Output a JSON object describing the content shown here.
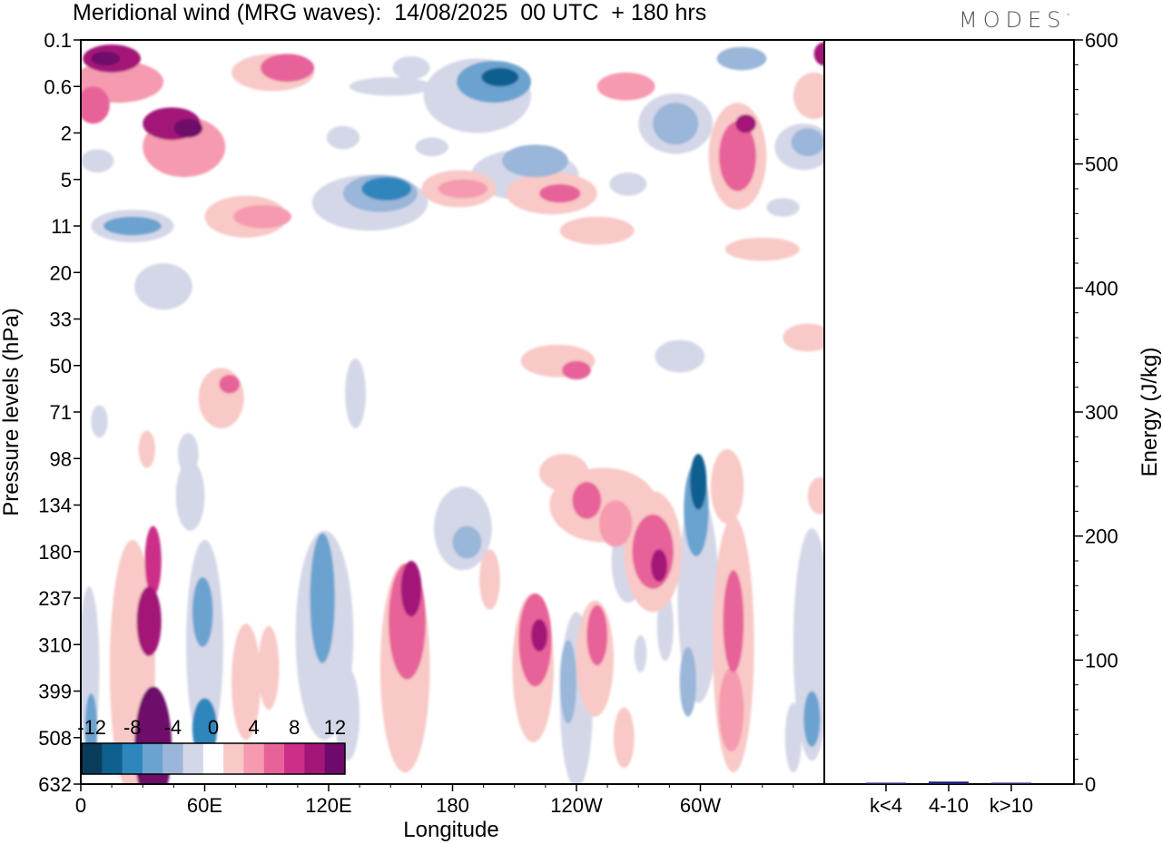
{
  "title": "Meridional wind (MRG waves):  14/08/2025  00 UTC  + 180 hrs",
  "logo": "MODES",
  "logo_mark": "°",
  "colors": {
    "neg": [
      "#0a3d5c",
      "#0f5f8f",
      "#2f86bd",
      "#6aa3cf",
      "#9ab6d8",
      "#d4d7e8"
    ],
    "pos": [
      "#f8c9c6",
      "#f59aaf",
      "#e8629a",
      "#cc2f88",
      "#a31678",
      "#6e0a6b"
    ]
  },
  "chart_data": [
    {
      "type": "heatmap",
      "title": "Meridional wind (MRG waves):  14/08/2025  00 UTC  + 180 hrs",
      "xlabel": "Longitude",
      "ylabel": "Pressure levels (hPa)",
      "x_ticks": [
        "0",
        "60E",
        "120E",
        "180",
        "120W",
        "60W"
      ],
      "y_ticks": [
        "0.1",
        "0.6",
        "2",
        "5",
        "11",
        "20",
        "33",
        "50",
        "71",
        "98",
        "134",
        "180",
        "237",
        "310",
        "399",
        "508",
        "632"
      ],
      "colorbar_labels": [
        "-12",
        "-8",
        "-4",
        "0",
        "4",
        "8",
        "12"
      ],
      "colorbar_levels": [
        -14,
        -12,
        -10,
        -8,
        -6,
        -4,
        -2,
        2,
        4,
        6,
        8,
        10,
        12,
        14
      ],
      "blobs": [
        {
          "lon": 35,
          "lev": 15.2,
          "w": 9,
          "h": 2.6,
          "v": 13
        },
        {
          "lon": 33,
          "lev": 12.5,
          "w": 6,
          "h": 1.5,
          "v": 11
        },
        {
          "lon": 35,
          "lev": 11.2,
          "w": 4,
          "h": 1.5,
          "v": 9
        },
        {
          "lon": 25,
          "lev": 13.5,
          "w": 11,
          "h": 5.5,
          "v": 3
        },
        {
          "lon": 32,
          "lev": 8.8,
          "w": 4,
          "h": 0.8,
          "v": 3
        },
        {
          "lon": 5,
          "lev": 14.8,
          "w": 3,
          "h": 1.5,
          "v": -6
        },
        {
          "lon": 4,
          "lev": 13.5,
          "w": 5,
          "h": 3.5,
          "v": -3
        },
        {
          "lon": 60,
          "lev": 14.8,
          "w": 6,
          "h": 1.3,
          "v": -9
        },
        {
          "lon": 59,
          "lev": 12.3,
          "w": 5,
          "h": 1.5,
          "v": -7
        },
        {
          "lon": 60,
          "lev": 13,
          "w": 9,
          "h": 4.5,
          "v": -3
        },
        {
          "lon": 53,
          "lev": 9.8,
          "w": 7,
          "h": 1.5,
          "v": -2.5
        },
        {
          "lon": 80,
          "lev": 13.8,
          "w": 7,
          "h": 2.5,
          "v": 2.5
        },
        {
          "lon": 91,
          "lev": 13.5,
          "w": 5,
          "h": 1.8,
          "v": 2.5
        },
        {
          "lon": 117,
          "lev": 12,
          "w": 6,
          "h": 2.8,
          "v": -6
        },
        {
          "lon": 118,
          "lev": 12.8,
          "w": 14,
          "h": 4.5,
          "v": -3
        },
        {
          "lon": 129,
          "lev": 14.5,
          "w": 6,
          "h": 2,
          "v": -2.5
        },
        {
          "lon": 160,
          "lev": 11.8,
          "w": 5,
          "h": 1.2,
          "v": 10
        },
        {
          "lon": 158,
          "lev": 12.5,
          "w": 9,
          "h": 2.5,
          "v": 7
        },
        {
          "lon": 157,
          "lev": 13.5,
          "w": 12,
          "h": 4.5,
          "v": 3
        },
        {
          "lon": 187,
          "lev": 10.8,
          "w": 7,
          "h": 0.7,
          "v": -5
        },
        {
          "lon": 185,
          "lev": 10.5,
          "w": 14,
          "h": 1.8,
          "v": -2.5
        },
        {
          "lon": 198,
          "lev": 11.6,
          "w": 5,
          "h": 1.3,
          "v": 3
        },
        {
          "lon": 222,
          "lev": 12.8,
          "w": 4,
          "h": 0.7,
          "v": 11
        },
        {
          "lon": 220,
          "lev": 12.9,
          "w": 8,
          "h": 2,
          "v": 7
        },
        {
          "lon": 219,
          "lev": 13.5,
          "w": 10,
          "h": 3.2,
          "v": 3
        },
        {
          "lon": 236,
          "lev": 13.8,
          "w": 4,
          "h": 1.8,
          "v": -5
        },
        {
          "lon": 240,
          "lev": 14.2,
          "w": 8,
          "h": 3.8,
          "v": -2.5
        },
        {
          "lon": 250,
          "lev": 12.8,
          "w": 5,
          "h": 1.3,
          "v": 6
        },
        {
          "lon": 249,
          "lev": 13.3,
          "w": 9,
          "h": 2.5,
          "v": 3
        },
        {
          "lon": 263,
          "lev": 15,
          "w": 5,
          "h": 1.3,
          "v": 3
        },
        {
          "lon": 271,
          "lev": 13.2,
          "w": 3,
          "h": 0.8,
          "v": -2.5
        },
        {
          "lon": 283,
          "lev": 12.6,
          "w": 4,
          "h": 1.5,
          "v": -2.5
        },
        {
          "lon": 234,
          "lev": 9.3,
          "w": 12,
          "h": 0.8,
          "v": 3
        },
        {
          "lon": 245,
          "lev": 9.9,
          "w": 7,
          "h": 0.8,
          "v": 7
        },
        {
          "lon": 259,
          "lev": 10.4,
          "w": 8,
          "h": 1,
          "v": 5
        },
        {
          "lon": 253,
          "lev": 10,
          "w": 26,
          "h": 1.6,
          "v": 3
        },
        {
          "lon": 280,
          "lev": 11.3,
          "w": 4,
          "h": 0.7,
          "v": 11
        },
        {
          "lon": 277,
          "lev": 11,
          "w": 10,
          "h": 1.6,
          "v": 6
        },
        {
          "lon": 277,
          "lev": 11,
          "w": 14,
          "h": 2.6,
          "v": 3
        },
        {
          "lon": 299,
          "lev": 9.5,
          "w": 4,
          "h": 1.2,
          "v": -11
        },
        {
          "lon": 298,
          "lev": 10.1,
          "w": 6,
          "h": 2,
          "v": -6
        },
        {
          "lon": 299,
          "lev": 12,
          "w": 10,
          "h": 4.5,
          "v": -2.5
        },
        {
          "lon": 294,
          "lev": 13.8,
          "w": 4,
          "h": 1.5,
          "v": -4
        },
        {
          "lon": 265,
          "lev": 11.2,
          "w": 8,
          "h": 1.8,
          "v": -2.5
        },
        {
          "lon": 316,
          "lev": 12.5,
          "w": 5,
          "h": 2.2,
          "v": 6
        },
        {
          "lon": 315,
          "lev": 14.4,
          "w": 6,
          "h": 1.8,
          "v": 5
        },
        {
          "lon": 316,
          "lev": 13,
          "w": 10,
          "h": 5.5,
          "v": 3
        },
        {
          "lon": 313,
          "lev": 9.6,
          "w": 8,
          "h": 1.6,
          "v": 2.5
        },
        {
          "lon": 354,
          "lev": 14.6,
          "w": 4,
          "h": 1.2,
          "v": -6
        },
        {
          "lon": 354,
          "lev": 13,
          "w": 9,
          "h": 5,
          "v": -3
        },
        {
          "lon": 345,
          "lev": 15,
          "w": 4,
          "h": 1.5,
          "v": -2.5
        },
        {
          "lon": 358,
          "lev": 9.8,
          "w": 6,
          "h": 0.8,
          "v": 2.5
        },
        {
          "lon": 68,
          "lev": 7.7,
          "w": 11,
          "h": 1.3,
          "v": 3
        },
        {
          "lon": 72,
          "lev": 7.4,
          "w": 5,
          "h": 0.4,
          "v": 6
        },
        {
          "lon": 133,
          "lev": 7.6,
          "w": 5,
          "h": 1.5,
          "v": -2.5
        },
        {
          "lon": 9,
          "lev": 8.2,
          "w": 4,
          "h": 0.7,
          "v": -2.5
        },
        {
          "lon": 52,
          "lev": 8.9,
          "w": 5,
          "h": 0.9,
          "v": -2.5
        },
        {
          "lon": 231,
          "lev": 6.9,
          "w": 18,
          "h": 0.7,
          "v": 3
        },
        {
          "lon": 240,
          "lev": 7.1,
          "w": 7,
          "h": 0.4,
          "v": 6
        },
        {
          "lon": 290,
          "lev": 6.8,
          "w": 12,
          "h": 0.7,
          "v": -2.5
        },
        {
          "lon": 352,
          "lev": 6.4,
          "w": 12,
          "h": 0.6,
          "v": 3
        },
        {
          "lon": 15,
          "lev": 0.4,
          "w": 14,
          "h": 0.6,
          "v": 10
        },
        {
          "lon": 12,
          "lev": 0.4,
          "w": 7,
          "h": 0.3,
          "v": 13
        },
        {
          "lon": 18,
          "lev": 0.9,
          "w": 22,
          "h": 0.9,
          "v": 4
        },
        {
          "lon": 6,
          "lev": 1.4,
          "w": 8,
          "h": 0.8,
          "v": 7
        },
        {
          "lon": 44,
          "lev": 1.8,
          "w": 14,
          "h": 0.7,
          "v": 10
        },
        {
          "lon": 52,
          "lev": 1.9,
          "w": 7,
          "h": 0.4,
          "v": 12
        },
        {
          "lon": 50,
          "lev": 2.3,
          "w": 20,
          "h": 1.3,
          "v": 4
        },
        {
          "lon": 100,
          "lev": 0.6,
          "w": 13,
          "h": 0.6,
          "v": 7
        },
        {
          "lon": 93,
          "lev": 0.7,
          "w": 20,
          "h": 0.8,
          "v": 3
        },
        {
          "lon": 88,
          "lev": 3.8,
          "w": 14,
          "h": 0.5,
          "v": 5
        },
        {
          "lon": 80,
          "lev": 3.8,
          "w": 20,
          "h": 0.9,
          "v": 3
        },
        {
          "lon": 160,
          "lev": 0.6,
          "w": 9,
          "h": 0.5,
          "v": -3
        },
        {
          "lon": 150,
          "lev": 1.0,
          "w": 20,
          "h": 0.4,
          "v": -3
        },
        {
          "lon": 203,
          "lev": 0.8,
          "w": 9,
          "h": 0.4,
          "v": -10
        },
        {
          "lon": 200,
          "lev": 0.9,
          "w": 18,
          "h": 0.9,
          "v": -6
        },
        {
          "lon": 192,
          "lev": 1.2,
          "w": 26,
          "h": 1.6,
          "v": -3
        },
        {
          "lon": 220,
          "lev": 2.6,
          "w": 16,
          "h": 0.7,
          "v": -5
        },
        {
          "lon": 215,
          "lev": 2.9,
          "w": 26,
          "h": 1.1,
          "v": -2.5
        },
        {
          "lon": 148,
          "lev": 3.2,
          "w": 12,
          "h": 0.5,
          "v": -9
        },
        {
          "lon": 145,
          "lev": 3.3,
          "w": 18,
          "h": 0.8,
          "v": -5
        },
        {
          "lon": 140,
          "lev": 3.5,
          "w": 28,
          "h": 1.2,
          "v": -2.5
        },
        {
          "lon": 185,
          "lev": 3.2,
          "w": 12,
          "h": 0.4,
          "v": 5
        },
        {
          "lon": 183,
          "lev": 3.2,
          "w": 18,
          "h": 0.8,
          "v": 3
        },
        {
          "lon": 228,
          "lev": 3.3,
          "w": 22,
          "h": 0.9,
          "v": 3
        },
        {
          "lon": 232,
          "lev": 3.3,
          "w": 10,
          "h": 0.4,
          "v": 6
        },
        {
          "lon": 264,
          "lev": 1.0,
          "w": 14,
          "h": 0.6,
          "v": 4
        },
        {
          "lon": 288,
          "lev": 1.8,
          "w": 11,
          "h": 0.9,
          "v": -5
        },
        {
          "lon": 288,
          "lev": 1.8,
          "w": 18,
          "h": 1.3,
          "v": -2.5
        },
        {
          "lon": 318,
          "lev": 2.5,
          "w": 9,
          "h": 1.5,
          "v": 6
        },
        {
          "lon": 322,
          "lev": 1.8,
          "w": 5,
          "h": 0.4,
          "v": 10
        },
        {
          "lon": 318,
          "lev": 2.5,
          "w": 14,
          "h": 2.3,
          "v": 3
        },
        {
          "lon": 352,
          "lev": 2.2,
          "w": 8,
          "h": 0.6,
          "v": -5
        },
        {
          "lon": 350,
          "lev": 2.3,
          "w": 14,
          "h": 1.0,
          "v": -2.5
        },
        {
          "lon": 360,
          "lev": 0.3,
          "w": 5,
          "h": 0.5,
          "v": 10
        },
        {
          "lon": 355,
          "lev": 1.2,
          "w": 10,
          "h": 1.0,
          "v": 3
        },
        {
          "lon": 320,
          "lev": 0.4,
          "w": 12,
          "h": 0.5,
          "v": -4
        },
        {
          "lon": 25,
          "lev": 4.0,
          "w": 14,
          "h": 0.4,
          "v": -6
        },
        {
          "lon": 25,
          "lev": 4.0,
          "w": 20,
          "h": 0.7,
          "v": -3
        },
        {
          "lon": 40,
          "lev": 5.3,
          "w": 14,
          "h": 1.0,
          "v": -2.5
        },
        {
          "lon": 8,
          "lev": 2.6,
          "w": 8,
          "h": 0.5,
          "v": -3
        },
        {
          "lon": 250,
          "lev": 4.1,
          "w": 18,
          "h": 0.6,
          "v": 3
        },
        {
          "lon": 330,
          "lev": 4.5,
          "w": 18,
          "h": 0.5,
          "v": 3
        },
        {
          "lon": 170,
          "lev": 2.3,
          "w": 8,
          "h": 0.4,
          "v": -2.5
        },
        {
          "lon": 265,
          "lev": 3.1,
          "w": 9,
          "h": 0.5,
          "v": -2.5
        },
        {
          "lon": 340,
          "lev": 3.6,
          "w": 8,
          "h": 0.4,
          "v": -2.5
        },
        {
          "lon": 127,
          "lev": 2.1,
          "w": 8,
          "h": 0.5,
          "v": -2.5
        }
      ]
    },
    {
      "type": "bar",
      "categories": [
        "k<4",
        "4-10",
        "k>10"
      ],
      "values": [
        0.5,
        2,
        0.3
      ],
      "ylabel": "Energy (J/kg)",
      "ylim": [
        0,
        600
      ],
      "y_ticks": [
        "0",
        "100",
        "200",
        "300",
        "400",
        "500",
        "600"
      ],
      "bar_color": "#1a1a6e"
    }
  ]
}
